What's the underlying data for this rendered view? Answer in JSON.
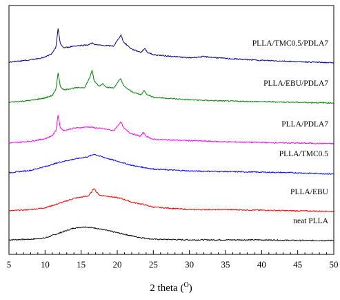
{
  "chart_data": {
    "type": "line",
    "title": "",
    "xlabel": "2 theta (O)",
    "ylabel": "",
    "xlim": [
      5,
      50
    ],
    "xticks": [
      5,
      10,
      15,
      20,
      25,
      30,
      35,
      40,
      45,
      50
    ],
    "yticks_shown": false,
    "grid": false,
    "legend": "labels placed at right above each curve",
    "stacked_offset": true,
    "series": [
      {
        "name": "neat PLLA",
        "color": "#000000",
        "offset": 0,
        "points": [
          [
            5,
            0
          ],
          [
            8,
            1
          ],
          [
            10,
            3
          ],
          [
            12,
            11
          ],
          [
            14,
            19
          ],
          [
            15.5,
            21
          ],
          [
            17,
            19
          ],
          [
            19,
            14
          ],
          [
            21,
            9
          ],
          [
            23,
            4
          ],
          [
            25,
            1
          ],
          [
            30,
            0
          ],
          [
            35,
            0
          ],
          [
            40,
            0
          ],
          [
            45,
            -1
          ],
          [
            50,
            -1
          ]
        ]
      },
      {
        "name": "PLLA/EBU",
        "color": "#ff0000",
        "offset": 1,
        "points": [
          [
            5,
            0
          ],
          [
            8,
            2
          ],
          [
            10,
            5
          ],
          [
            12,
            12
          ],
          [
            14,
            20
          ],
          [
            16,
            24
          ],
          [
            16.5,
            31
          ],
          [
            16.8,
            37
          ],
          [
            17.1,
            30
          ],
          [
            17.6,
            25
          ],
          [
            19,
            23
          ],
          [
            20.5,
            20
          ],
          [
            22,
            14
          ],
          [
            23.7,
            10
          ],
          [
            25,
            6
          ],
          [
            30,
            2
          ],
          [
            35,
            2
          ],
          [
            40,
            1
          ],
          [
            45,
            0
          ],
          [
            50,
            -1
          ]
        ]
      },
      {
        "name": "PLLA/TMC0.5",
        "color": "#0000ff",
        "offset": 2,
        "points": [
          [
            5,
            0
          ],
          [
            8,
            4
          ],
          [
            10,
            10
          ],
          [
            12,
            17
          ],
          [
            14,
            22
          ],
          [
            16,
            26
          ],
          [
            16.8,
            30
          ],
          [
            17.5,
            27
          ],
          [
            19,
            22
          ],
          [
            20.5,
            17
          ],
          [
            22,
            12
          ],
          [
            25,
            6
          ],
          [
            30,
            3
          ],
          [
            35,
            2
          ],
          [
            40,
            1
          ],
          [
            45,
            0
          ],
          [
            50,
            -2
          ]
        ]
      },
      {
        "name": "PLLA/PDLA7",
        "color": "#ff00ff",
        "offset": 3,
        "points": [
          [
            5,
            0
          ],
          [
            8,
            3
          ],
          [
            10,
            7
          ],
          [
            11,
            12
          ],
          [
            11.5,
            20
          ],
          [
            11.8,
            45
          ],
          [
            12.1,
            25
          ],
          [
            12.6,
            20
          ],
          [
            14,
            24
          ],
          [
            16,
            26
          ],
          [
            18,
            23
          ],
          [
            19.5,
            20
          ],
          [
            20.2,
            30
          ],
          [
            20.5,
            34
          ],
          [
            20.9,
            24
          ],
          [
            21.8,
            16
          ],
          [
            23.2,
            11
          ],
          [
            23.6,
            17
          ],
          [
            24,
            11
          ],
          [
            25,
            6
          ],
          [
            30,
            4
          ],
          [
            35,
            2
          ],
          [
            40,
            1
          ],
          [
            45,
            0
          ],
          [
            50,
            -1
          ]
        ]
      },
      {
        "name": "PLLA/EBU/PDLA7",
        "color": "#008000",
        "offset": 4,
        "points": [
          [
            5,
            0
          ],
          [
            8,
            3
          ],
          [
            10,
            7
          ],
          [
            11,
            11
          ],
          [
            11.5,
            20
          ],
          [
            11.8,
            48
          ],
          [
            12.1,
            26
          ],
          [
            12.6,
            20
          ],
          [
            14,
            23
          ],
          [
            15.5,
            24
          ],
          [
            16.2,
            40
          ],
          [
            16.5,
            52
          ],
          [
            16.8,
            34
          ],
          [
            17.5,
            26
          ],
          [
            18,
            30
          ],
          [
            18.6,
            24
          ],
          [
            19.5,
            23
          ],
          [
            20.2,
            34
          ],
          [
            20.5,
            38
          ],
          [
            20.9,
            26
          ],
          [
            22,
            17
          ],
          [
            23.3,
            12
          ],
          [
            23.7,
            19
          ],
          [
            24.1,
            13
          ],
          [
            25,
            8
          ],
          [
            30,
            4
          ],
          [
            35,
            2
          ],
          [
            40,
            1
          ],
          [
            45,
            0
          ],
          [
            50,
            -1
          ]
        ]
      },
      {
        "name": "PLLA/TMC0.5/PDLA7",
        "color": "#00008b",
        "offset": 5,
        "points": [
          [
            5,
            0
          ],
          [
            8,
            4
          ],
          [
            10,
            8
          ],
          [
            11,
            14
          ],
          [
            11.5,
            24
          ],
          [
            11.8,
            54
          ],
          [
            12.1,
            30
          ],
          [
            12.6,
            23
          ],
          [
            14,
            26
          ],
          [
            16,
            28
          ],
          [
            16.5,
            31
          ],
          [
            17,
            28
          ],
          [
            18,
            27
          ],
          [
            19.5,
            26
          ],
          [
            20.2,
            38
          ],
          [
            20.5,
            44
          ],
          [
            20.9,
            32
          ],
          [
            22,
            21
          ],
          [
            23.3,
            16
          ],
          [
            23.8,
            22
          ],
          [
            24.2,
            16
          ],
          [
            25,
            12
          ],
          [
            30,
            7
          ],
          [
            32,
            9
          ],
          [
            35,
            6
          ],
          [
            40,
            3
          ],
          [
            45,
            1
          ],
          [
            50,
            -1
          ]
        ]
      }
    ]
  }
}
